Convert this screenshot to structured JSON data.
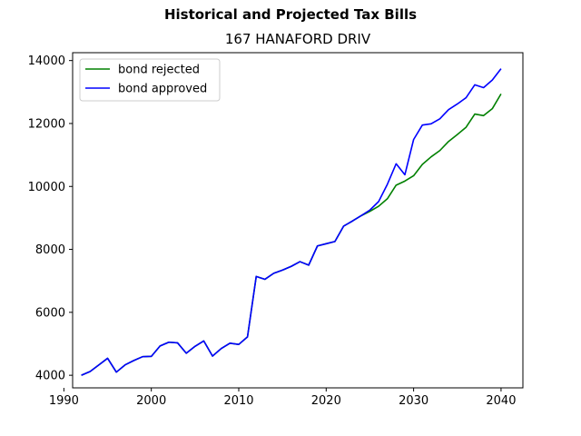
{
  "suptitle": "Historical and Projected Tax Bills",
  "chart_data": {
    "type": "line",
    "title": "167 HANAFORD DRIV",
    "xlabel": "",
    "ylabel": "",
    "xlim": [
      1991,
      2042.5
    ],
    "ylim": [
      3600,
      14250
    ],
    "xticks": [
      1990,
      2000,
      2010,
      2020,
      2030,
      2040
    ],
    "yticks": [
      4000,
      6000,
      8000,
      10000,
      12000,
      14000
    ],
    "grid": false,
    "legend_position": "top-left",
    "series": [
      {
        "name": "bond rejected",
        "color": "#008000",
        "x": [
          1992,
          1993,
          1994,
          1995,
          1996,
          1997,
          1998,
          1999,
          2000,
          2001,
          2002,
          2003,
          2004,
          2005,
          2006,
          2007,
          2008,
          2009,
          2010,
          2011,
          2012,
          2013,
          2014,
          2015,
          2016,
          2017,
          2018,
          2019,
          2020,
          2021,
          2022,
          2023,
          2024,
          2025,
          2026,
          2027,
          2028,
          2029,
          2030,
          2031,
          2032,
          2033,
          2034,
          2035,
          2036,
          2037,
          2038,
          2039,
          2040
        ],
        "values": [
          4000,
          4120,
          4330,
          4540,
          4100,
          4330,
          4470,
          4590,
          4600,
          4930,
          5050,
          5030,
          4700,
          4920,
          5090,
          4610,
          4850,
          5020,
          4980,
          5220,
          7140,
          7050,
          7240,
          7340,
          7460,
          7610,
          7500,
          8110,
          8180,
          8250,
          8740,
          8900,
          9070,
          9210,
          9370,
          9610,
          10040,
          10170,
          10340,
          10700,
          10940,
          11140,
          11430,
          11650,
          11880,
          12300,
          12250,
          12470,
          12940
        ]
      },
      {
        "name": "bond approved",
        "color": "#0000ff",
        "x": [
          1992,
          1993,
          1994,
          1995,
          1996,
          1997,
          1998,
          1999,
          2000,
          2001,
          2002,
          2003,
          2004,
          2005,
          2006,
          2007,
          2008,
          2009,
          2010,
          2011,
          2012,
          2013,
          2014,
          2015,
          2016,
          2017,
          2018,
          2019,
          2020,
          2021,
          2022,
          2023,
          2024,
          2025,
          2026,
          2027,
          2028,
          2029,
          2030,
          2031,
          2032,
          2033,
          2034,
          2035,
          2036,
          2037,
          2038,
          2039,
          2040
        ],
        "values": [
          4000,
          4120,
          4330,
          4540,
          4100,
          4330,
          4470,
          4590,
          4600,
          4930,
          5050,
          5030,
          4700,
          4920,
          5090,
          4610,
          4850,
          5020,
          4980,
          5220,
          7140,
          7050,
          7240,
          7340,
          7460,
          7610,
          7500,
          8110,
          8180,
          8250,
          8740,
          8900,
          9070,
          9250,
          9520,
          10070,
          10720,
          10370,
          11490,
          11950,
          11990,
          12150,
          12440,
          12620,
          12820,
          13230,
          13140,
          13380,
          13740
        ]
      }
    ]
  }
}
